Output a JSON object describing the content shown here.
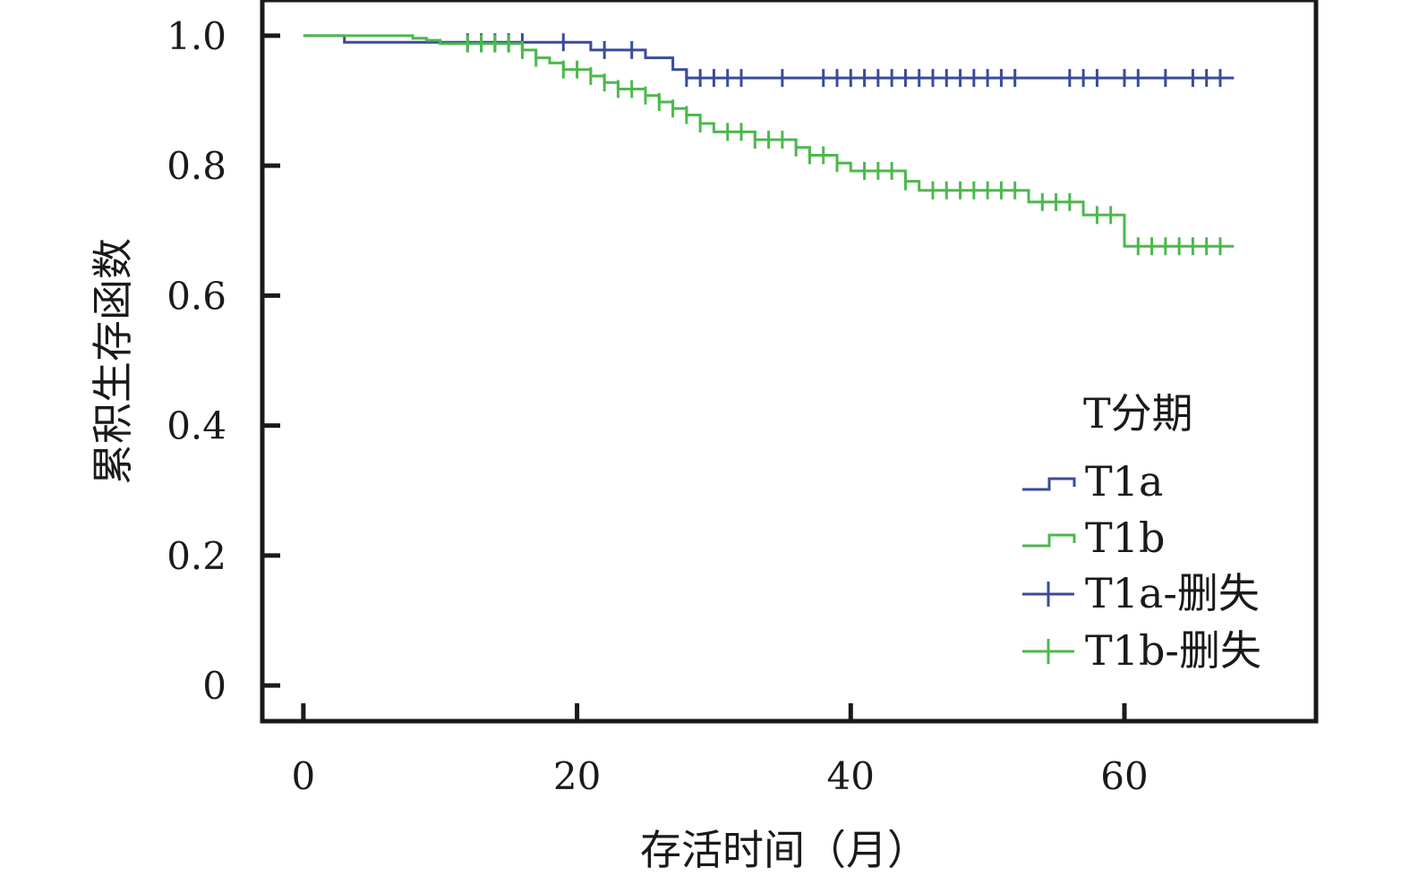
{
  "chart_data": {
    "type": "line",
    "subtype": "kaplan-meier",
    "title": "",
    "xlabel": "存活时间（月）",
    "ylabel": "累积生存函数",
    "xlim": [
      -3,
      74
    ],
    "ylim": [
      -0.055,
      1.055
    ],
    "xticks": [
      0,
      20,
      40,
      60
    ],
    "xtick_labels": [
      "0",
      "20",
      "40",
      "60"
    ],
    "yticks": [
      0,
      0.2,
      0.4,
      0.6,
      0.8,
      1.0
    ],
    "ytick_labels": [
      "0",
      "0.2",
      "0.4",
      "0.6",
      "0.8",
      "1.0"
    ],
    "grid": false,
    "legend_position": "right",
    "legend_title": "T分期",
    "legend": [
      "T1a",
      "T1b",
      "T1a-删失",
      "T1b-删失"
    ],
    "series": [
      {
        "name": "T1a",
        "color": "#3b4b9a",
        "steps": [
          [
            0,
            1.0
          ],
          [
            3,
            0.99
          ],
          [
            21,
            0.978
          ],
          [
            25,
            0.966
          ],
          [
            27,
            0.948
          ],
          [
            28,
            0.935
          ],
          [
            68,
            0.935
          ]
        ],
        "censored": [
          12,
          13,
          14,
          15,
          16,
          19,
          22,
          24,
          28,
          29,
          30,
          31,
          32,
          35,
          38,
          39,
          40,
          41,
          42,
          43,
          44,
          45,
          46,
          47,
          48,
          49,
          50,
          51,
          52,
          56,
          57,
          58,
          60,
          61,
          63,
          65,
          66,
          67
        ]
      },
      {
        "name": "T1b",
        "color": "#4db84d",
        "steps": [
          [
            0,
            1.0
          ],
          [
            8,
            0.996
          ],
          [
            9,
            0.993
          ],
          [
            10,
            0.988
          ],
          [
            16,
            0.978
          ],
          [
            17,
            0.966
          ],
          [
            18,
            0.958
          ],
          [
            19,
            0.948
          ],
          [
            21,
            0.938
          ],
          [
            22,
            0.928
          ],
          [
            23,
            0.918
          ],
          [
            25,
            0.908
          ],
          [
            26,
            0.898
          ],
          [
            27,
            0.888
          ],
          [
            28,
            0.878
          ],
          [
            29,
            0.865
          ],
          [
            30,
            0.852
          ],
          [
            33,
            0.84
          ],
          [
            36,
            0.828
          ],
          [
            37,
            0.816
          ],
          [
            39,
            0.804
          ],
          [
            40,
            0.792
          ],
          [
            44,
            0.776
          ],
          [
            45,
            0.762
          ],
          [
            53,
            0.744
          ],
          [
            57,
            0.724
          ],
          [
            60,
            0.676
          ],
          [
            68,
            0.676
          ]
        ],
        "censored": [
          12,
          13,
          14,
          15,
          16,
          17,
          19,
          20,
          21,
          22,
          23,
          24,
          25,
          26,
          27,
          28,
          29,
          31,
          32,
          33,
          34,
          35,
          36,
          37,
          38,
          39,
          41,
          42,
          43,
          44,
          46,
          47,
          48,
          49,
          50,
          51,
          52,
          54,
          55,
          56,
          58,
          59,
          61,
          62,
          63,
          64,
          65,
          66,
          67
        ]
      }
    ]
  }
}
